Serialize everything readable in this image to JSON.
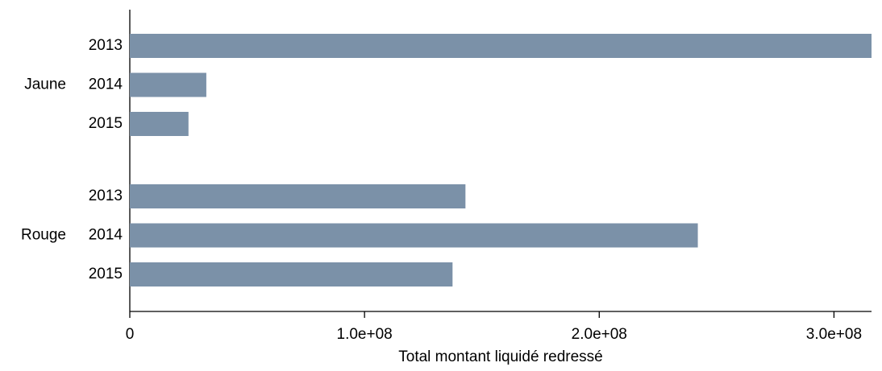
{
  "chart_data": {
    "type": "bar",
    "orientation": "horizontal",
    "xlabel": "Total montant liquidé redressé",
    "groups": [
      {
        "name": "Jaune",
        "categories": [
          "2013",
          "2014",
          "2015"
        ],
        "values": [
          316000000,
          32600000,
          25000000
        ]
      },
      {
        "name": "Rouge",
        "categories": [
          "2013",
          "2014",
          "2015"
        ],
        "values": [
          143000000,
          242000000,
          137500000
        ]
      }
    ],
    "color": "#7b91a8",
    "xlim": [
      0,
      316000000
    ],
    "xticks": [
      0,
      {
        "value": 100000000,
        "label": "1.0e+08"
      },
      {
        "value": 200000000,
        "label": "2.0e+08"
      },
      {
        "value": 300000000,
        "label": "3.0e+08"
      }
    ]
  }
}
